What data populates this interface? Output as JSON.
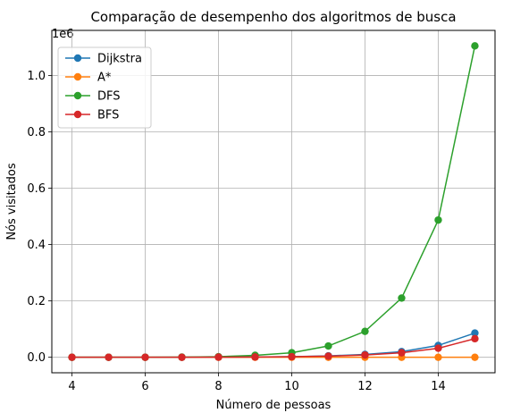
{
  "chart_data": {
    "type": "line",
    "title": "Comparação de desempenho dos algoritmos de busca",
    "xlabel": "Número de pessoas",
    "ylabel": "Nós visitados",
    "offset_text": "1e6",
    "x": [
      4,
      5,
      6,
      7,
      8,
      9,
      10,
      11,
      12,
      13,
      14,
      15
    ],
    "xlim": [
      3.45,
      15.55
    ],
    "ylim": [
      -0.055,
      1.16
    ],
    "xticks": [
      4,
      6,
      8,
      10,
      12,
      14
    ],
    "xtick_labels": [
      "4",
      "6",
      "8",
      "10",
      "12",
      "14"
    ],
    "yticks": [
      0.0,
      0.2,
      0.4,
      0.6,
      0.8,
      1.0
    ],
    "ytick_labels": [
      "0.0",
      "0.2",
      "0.4",
      "0.6",
      "0.8",
      "1.0"
    ],
    "grid": true,
    "legend_position": "top-left",
    "series": [
      {
        "name": "Dijkstra",
        "color": "#1f77b4",
        "values": [
          0.0,
          0.0,
          0.0,
          0.0,
          0.0005,
          0.001,
          0.002,
          0.005,
          0.01,
          0.02,
          0.042,
          0.086
        ]
      },
      {
        "name": "A*",
        "color": "#ff7f0e",
        "values": [
          0.0,
          0.0,
          0.0,
          0.0,
          0.0,
          0.0,
          0.0,
          0.0,
          0.0,
          0.0,
          0.0,
          0.0
        ]
      },
      {
        "name": "DFS",
        "color": "#2ca02c",
        "values": [
          0.0,
          0.0,
          0.0,
          0.0005,
          0.002,
          0.007,
          0.016,
          0.04,
          0.092,
          0.21,
          0.487,
          1.105
        ]
      },
      {
        "name": "BFS",
        "color": "#d62728",
        "values": [
          0.0,
          0.0,
          0.0,
          0.0,
          0.0005,
          0.001,
          0.002,
          0.004,
          0.008,
          0.016,
          0.032,
          0.066
        ]
      }
    ]
  }
}
